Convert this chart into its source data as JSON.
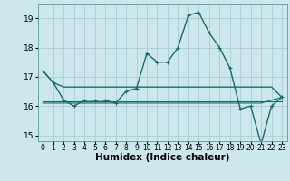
{
  "title": "",
  "xlabel": "Humidex (Indice chaleur)",
  "ylabel": "",
  "bg_color": "#cce8ec",
  "line_color": "#1a6b6b",
  "grid_color": "#aacdd4",
  "xlim": [
    -0.5,
    23.5
  ],
  "ylim": [
    14.8,
    19.5
  ],
  "yticks": [
    15,
    16,
    17,
    18,
    19
  ],
  "xticks": [
    0,
    1,
    2,
    3,
    4,
    5,
    6,
    7,
    8,
    9,
    10,
    11,
    12,
    13,
    14,
    15,
    16,
    17,
    18,
    19,
    20,
    21,
    22,
    23
  ],
  "series": [
    [
      17.2,
      16.8,
      16.65,
      16.65,
      16.65,
      16.65,
      16.65,
      16.65,
      16.65,
      16.65,
      16.65,
      16.65,
      16.65,
      16.65,
      16.65,
      16.65,
      16.65,
      16.65,
      16.65,
      16.65,
      16.65,
      16.65,
      16.65,
      16.3
    ],
    [
      17.2,
      16.8,
      16.2,
      16.0,
      16.2,
      16.2,
      16.2,
      16.1,
      16.5,
      16.6,
      17.8,
      17.5,
      17.5,
      18.0,
      19.1,
      19.2,
      18.5,
      18.0,
      17.3,
      15.9,
      16.0,
      14.7,
      16.0,
      16.3
    ],
    [
      16.15,
      16.15,
      16.15,
      16.15,
      16.15,
      16.15,
      16.15,
      16.15,
      16.15,
      16.15,
      16.15,
      16.15,
      16.15,
      16.15,
      16.15,
      16.15,
      16.15,
      16.15,
      16.15,
      16.15,
      16.15,
      16.15,
      16.15,
      16.15
    ],
    [
      16.1,
      16.1,
      16.1,
      16.1,
      16.1,
      16.1,
      16.1,
      16.1,
      16.1,
      16.1,
      16.1,
      16.1,
      16.1,
      16.1,
      16.1,
      16.1,
      16.1,
      16.1,
      16.1,
      16.1,
      16.1,
      16.1,
      16.2,
      16.3
    ]
  ],
  "show_markers": [
    false,
    true,
    false,
    false
  ],
  "linewidths": [
    1.0,
    1.0,
    0.8,
    0.8
  ],
  "xlabel_fontsize": 7.5,
  "xlabel_bold": true
}
